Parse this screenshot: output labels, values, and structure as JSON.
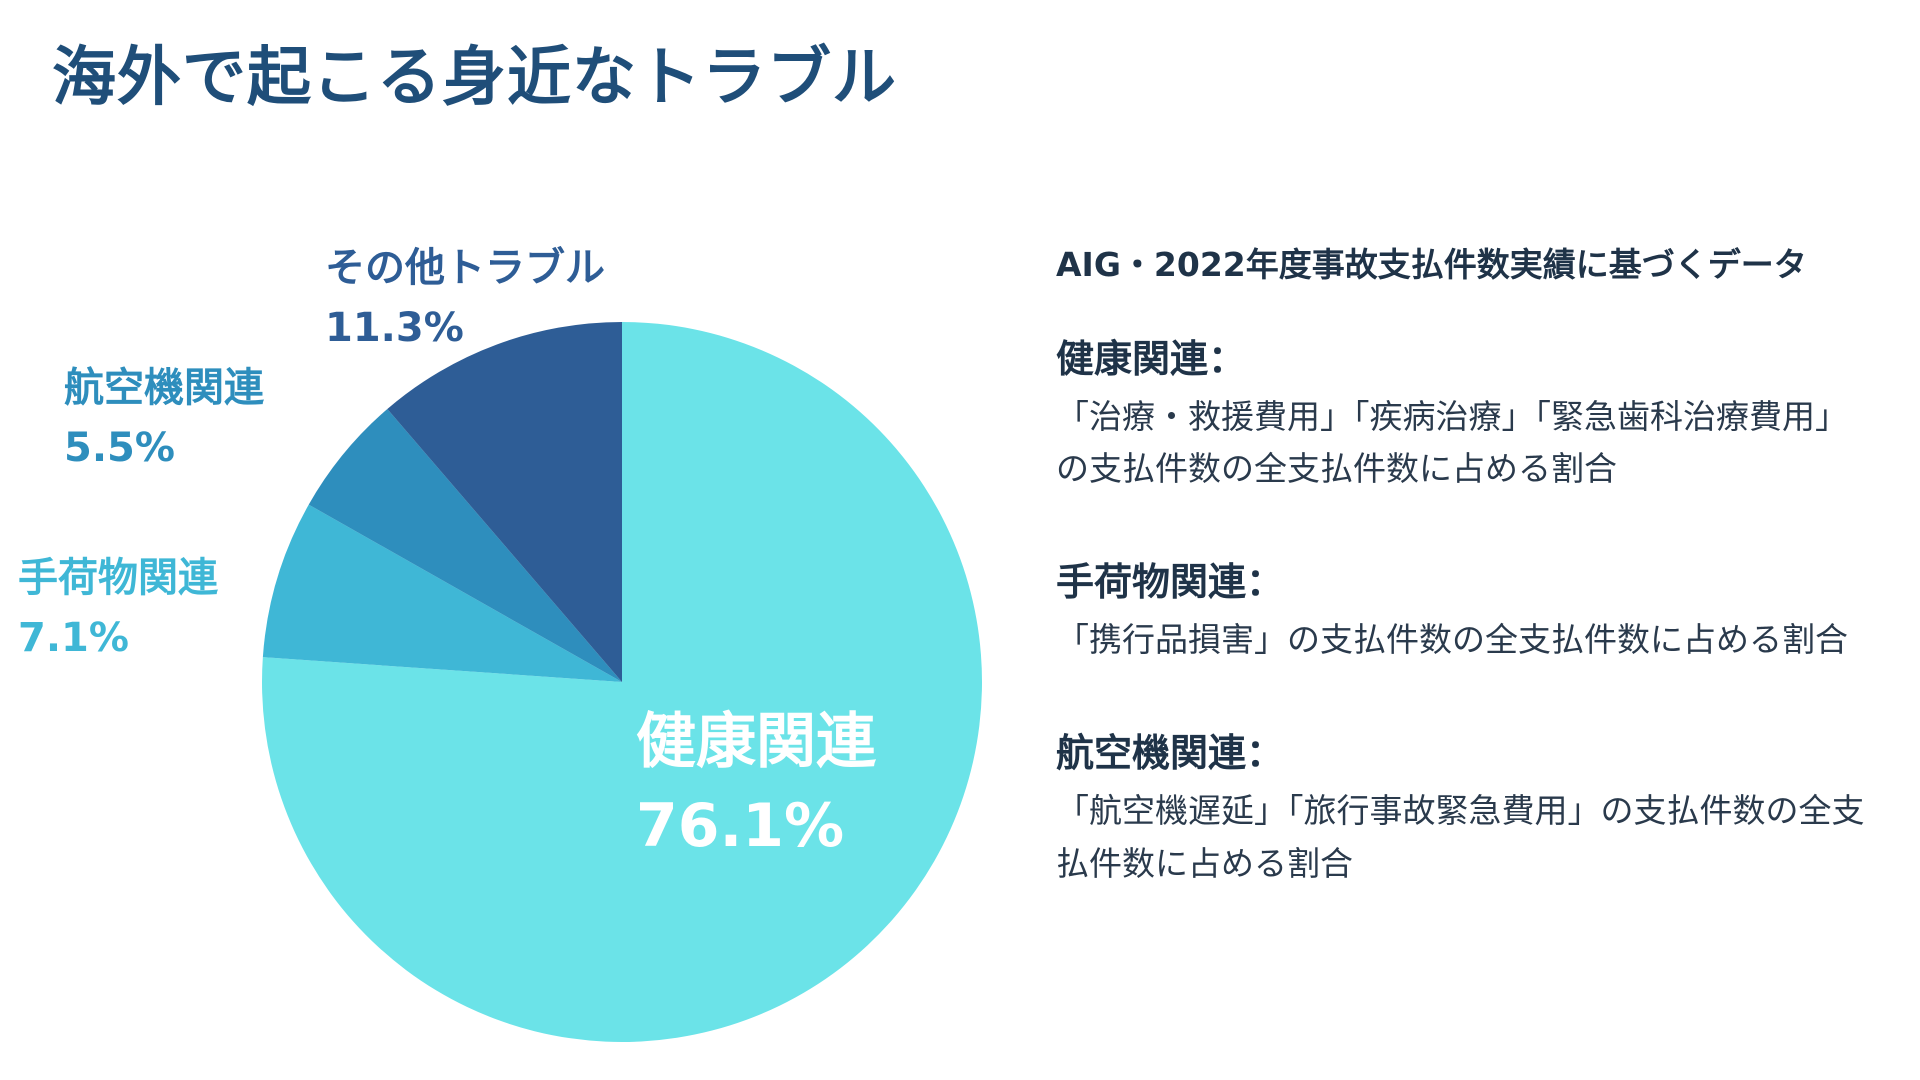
{
  "title": "海外で起こる身近なトラブル",
  "colors": {
    "title": "#1f4e79",
    "health": "#6be3e8",
    "baggage": "#3fb7d6",
    "aviation": "#2e8ebd",
    "other": "#2e5d96"
  },
  "chart_data": {
    "type": "pie",
    "slices": [
      {
        "label": "健康関連",
        "value": 76.1,
        "value_label": "76.1%",
        "color": "#6be3e8"
      },
      {
        "label": "手荷物関連",
        "value": 7.1,
        "value_label": "7.1%",
        "color": "#3fb7d6"
      },
      {
        "label": "航空機関連",
        "value": 5.5,
        "value_label": "5.5%",
        "color": "#2e8ebd"
      },
      {
        "label": "その他トラブル",
        "value": 11.3,
        "value_label": "11.3%",
        "color": "#2e5d96"
      }
    ]
  },
  "notes": {
    "source": "AIG・2022年度事故支払件数実績に基づくデータ",
    "items": [
      {
        "heading": "健康関連：",
        "body": "「治療・救援費用」「疾病治療」「緊急歯科治療費用」の支払件数の全支払件数に占める割合"
      },
      {
        "heading": "手荷物関連：",
        "body": "「携行品損害」の支払件数の全支払件数に占める割合"
      },
      {
        "heading": "航空機関連：",
        "body": "「航空機遅延」「旅行事故緊急費用」の支払件数の全支払件数に占める割合"
      }
    ]
  }
}
